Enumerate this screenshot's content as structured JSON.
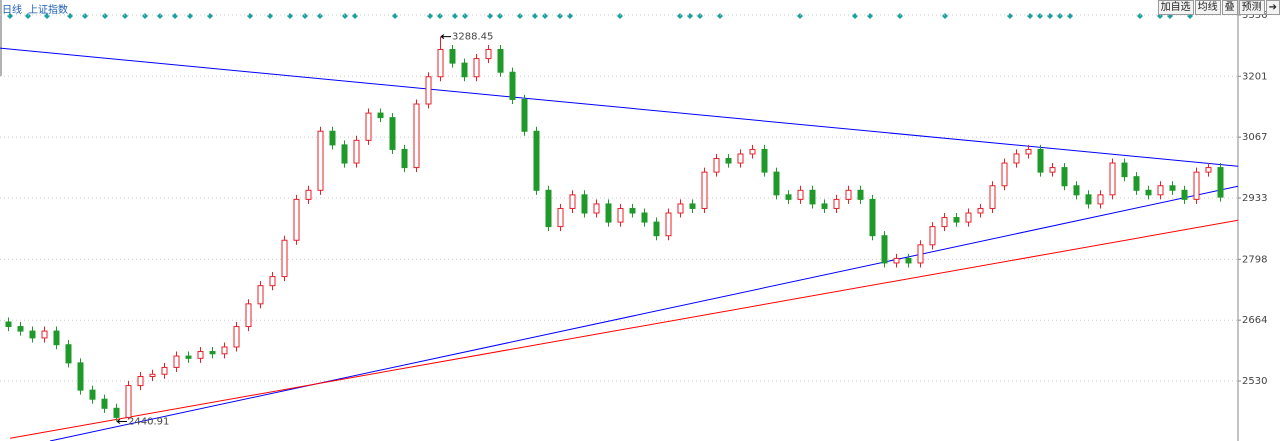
{
  "header": {
    "period": "日线",
    "index_name": "上证指数"
  },
  "toolbar": [
    "加自选",
    "均线",
    "叠",
    "预测"
  ],
  "chart_data": {
    "type": "candlestick",
    "up_color": "#e8202a",
    "down_color": "#1f9a2a",
    "ylim": [
      2398,
      3369
    ],
    "yticks": [
      2530,
      2664,
      2798,
      2933,
      3067,
      3201,
      3336
    ],
    "grid": true,
    "open": [
      2660,
      2650,
      2640,
      2625,
      2640,
      2610,
      2570,
      2510,
      2490,
      2470,
      2450,
      2520,
      2540,
      2545,
      2560,
      2585,
      2580,
      2595,
      2590,
      2605,
      2650,
      2700,
      2740,
      2760,
      2840,
      2930,
      2950,
      3080,
      3050,
      3010,
      3060,
      3120,
      3110,
      3040,
      3000,
      3140,
      3200,
      3260,
      3230,
      3200,
      3240,
      3260,
      3210,
      3150,
      3080,
      2950,
      2870,
      2910,
      2940,
      2900,
      2920,
      2880,
      2910,
      2900,
      2880,
      2850,
      2900,
      2920,
      2910,
      2990,
      3020,
      3010,
      3030,
      3040,
      2990,
      2940,
      2930,
      2950,
      2920,
      2910,
      2930,
      2950,
      2930,
      2850,
      2790,
      2800,
      2790,
      2830,
      2870,
      2890,
      2880,
      2900,
      2910,
      2960,
      3010,
      3030,
      3040,
      2990,
      3000,
      2960,
      2940,
      2920,
      2940,
      3010,
      2980,
      2950,
      2940,
      2960,
      2950,
      2930,
      2990,
      3000
    ],
    "high": [
      2670,
      2660,
      2650,
      2650,
      2650,
      2620,
      2580,
      2520,
      2500,
      2480,
      2530,
      2550,
      2555,
      2570,
      2595,
      2595,
      2605,
      2605,
      2615,
      2660,
      2710,
      2750,
      2770,
      2850,
      2940,
      2960,
      3090,
      3090,
      3060,
      3070,
      3130,
      3130,
      3120,
      3050,
      3150,
      3210,
      3288.45,
      3270,
      3240,
      3250,
      3270,
      3270,
      3220,
      3160,
      3090,
      2960,
      2920,
      2950,
      2950,
      2930,
      2930,
      2920,
      2920,
      2910,
      2890,
      2910,
      2930,
      2930,
      3000,
      3030,
      3030,
      3040,
      3050,
      3050,
      3000,
      2950,
      2960,
      2960,
      2930,
      2940,
      2960,
      2960,
      2940,
      2860,
      2810,
      2810,
      2840,
      2880,
      2900,
      2900,
      2910,
      2920,
      2970,
      3020,
      3040,
      3050,
      3050,
      3010,
      3010,
      2970,
      2950,
      2950,
      3020,
      3020,
      2990,
      2960,
      2970,
      2970,
      2960,
      3000,
      3010,
      3010
    ],
    "low": [
      2640,
      2630,
      2615,
      2615,
      2600,
      2560,
      2500,
      2480,
      2460,
      2440.91,
      2445,
      2510,
      2530,
      2535,
      2550,
      2570,
      2570,
      2580,
      2580,
      2595,
      2640,
      2690,
      2730,
      2750,
      2830,
      2920,
      2940,
      3040,
      3000,
      3000,
      3050,
      3100,
      3030,
      2990,
      2990,
      3130,
      3190,
      3220,
      3190,
      3190,
      3230,
      3200,
      3140,
      3070,
      2940,
      2860,
      2860,
      2900,
      2890,
      2890,
      2870,
      2870,
      2890,
      2870,
      2840,
      2840,
      2890,
      2900,
      2900,
      2980,
      3000,
      3000,
      3020,
      2980,
      2930,
      2920,
      2920,
      2910,
      2900,
      2900,
      2920,
      2920,
      2840,
      2780,
      2780,
      2780,
      2780,
      2820,
      2860,
      2870,
      2870,
      2890,
      2900,
      2950,
      3000,
      3020,
      2980,
      2980,
      2950,
      2930,
      2910,
      2910,
      2930,
      2970,
      2940,
      2930,
      2930,
      2940,
      2920,
      2920,
      2980,
      2925
    ],
    "close": [
      2650,
      2640,
      2625,
      2640,
      2610,
      2570,
      2510,
      2490,
      2470,
      2450,
      2520,
      2540,
      2545,
      2560,
      2585,
      2580,
      2595,
      2590,
      2605,
      2650,
      2700,
      2740,
      2760,
      2840,
      2930,
      2950,
      3080,
      3050,
      3010,
      3060,
      3120,
      3110,
      3040,
      3000,
      3140,
      3200,
      3260,
      3230,
      3200,
      3240,
      3260,
      3210,
      3150,
      3080,
      2950,
      2870,
      2910,
      2940,
      2900,
      2920,
      2880,
      2910,
      2900,
      2880,
      2850,
      2900,
      2920,
      2910,
      2990,
      3020,
      3010,
      3030,
      3040,
      2990,
      2940,
      2930,
      2950,
      2920,
      2910,
      2930,
      2950,
      2930,
      2850,
      2790,
      2800,
      2790,
      2830,
      2870,
      2890,
      2880,
      2900,
      2910,
      2960,
      3010,
      3030,
      3040,
      2990,
      3000,
      2960,
      2940,
      2920,
      2940,
      3010,
      2980,
      2950,
      2940,
      2960,
      2950,
      2930,
      2990,
      3000,
      2935
    ],
    "trendlines": [
      {
        "color": "#0000ff",
        "x": [
          -0.67,
          102.5
        ],
        "values": [
          3263,
          3003
        ]
      },
      {
        "color": "#0000ff",
        "x": [
          3.5,
          102.5
        ],
        "values": [
          2398,
          2959
        ]
      },
      {
        "color": "#ff0000",
        "x": [
          0.17,
          102.5
        ],
        "values": [
          2404,
          2884
        ]
      }
    ]
  }
}
